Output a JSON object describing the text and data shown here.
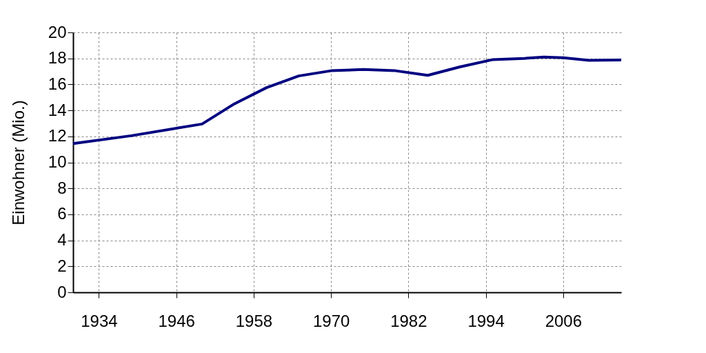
{
  "chart_data": {
    "type": "line",
    "ylabel": "Einwohner (Mio.)",
    "x": [
      1930,
      1939,
      1950,
      1955,
      1960,
      1965,
      1970,
      1975,
      1980,
      1985,
      1990,
      1995,
      2000,
      2003,
      2006,
      2010,
      2015
    ],
    "series": [
      {
        "color": "#000080",
        "values": [
          11.45,
          12.05,
          12.95,
          14.5,
          15.75,
          16.65,
          17.05,
          17.15,
          17.05,
          16.7,
          17.35,
          17.9,
          18.0,
          18.1,
          18.05,
          17.85,
          17.88
        ]
      }
    ],
    "xlim": [
      1930,
      2015
    ],
    "xticks": [
      1934,
      1946,
      1958,
      1970,
      1982,
      1994,
      2006
    ],
    "ylim": [
      0,
      20
    ],
    "yticks": [
      0,
      2,
      4,
      6,
      8,
      10,
      12,
      14,
      16,
      18,
      20
    ],
    "grid": true,
    "legend": false,
    "marker": "none",
    "line_style": "solid"
  }
}
